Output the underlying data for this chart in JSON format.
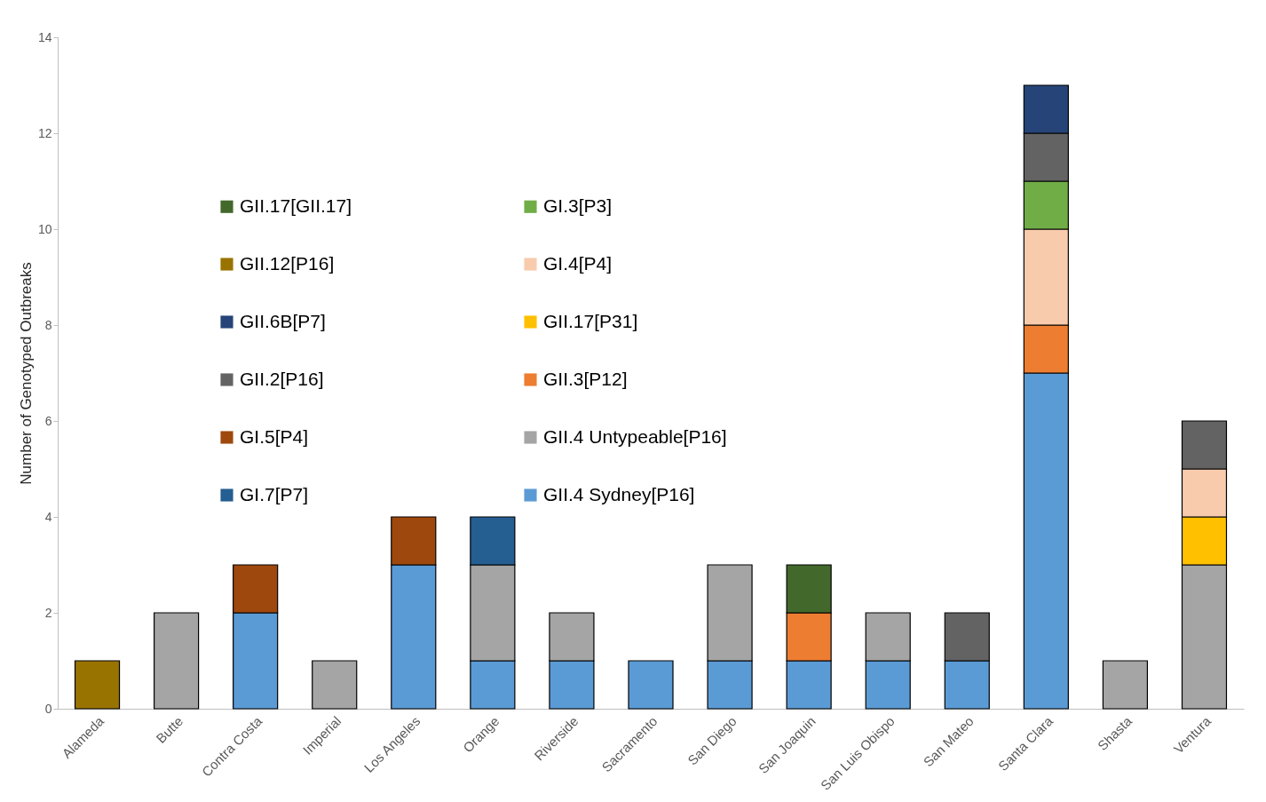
{
  "chart_data": {
    "type": "bar",
    "stacked": true,
    "ylabel": "Number of Genotyped Outbreaks",
    "categories": [
      "Alameda",
      "Butte",
      "Contra Costa",
      "Imperial",
      "Los Angeles",
      "Orange",
      "Riverside",
      "Sacramento",
      "San Diego",
      "San Joaquin",
      "San Luis Obispo",
      "San Mateo",
      "Santa Clara",
      "Shasta",
      "Ventura"
    ],
    "ylim": [
      0,
      14
    ],
    "yticks": [
      0,
      2,
      4,
      6,
      8,
      10,
      12,
      14
    ],
    "grid": false,
    "legend": "top left",
    "series": [
      {
        "name": "GII.4 Sydney[P16]",
        "color": "#5b9bd5",
        "values": [
          null,
          null,
          2,
          null,
          3,
          1,
          1,
          1,
          1,
          1,
          1,
          1,
          7,
          null,
          null
        ]
      },
      {
        "name": "GII.4 Untypeable[P16]",
        "color": "#a5a5a5",
        "values": [
          null,
          2,
          null,
          1,
          null,
          2,
          1,
          null,
          2,
          null,
          1,
          null,
          null,
          1,
          3
        ]
      },
      {
        "name": "GII.3[P12]",
        "color": "#ed7d31",
        "values": [
          null,
          null,
          null,
          null,
          null,
          null,
          null,
          null,
          null,
          1,
          null,
          null,
          1,
          null,
          null
        ]
      },
      {
        "name": "GII.17[P31]",
        "color": "#ffc000",
        "values": [
          null,
          null,
          null,
          null,
          null,
          null,
          null,
          null,
          null,
          null,
          null,
          null,
          null,
          null,
          1
        ]
      },
      {
        "name": "GI.4[P4]",
        "color": "#f8cbad",
        "values": [
          null,
          null,
          null,
          null,
          null,
          null,
          null,
          null,
          null,
          null,
          null,
          null,
          2,
          null,
          1
        ]
      },
      {
        "name": "GI.3[P3]",
        "color": "#70ad47",
        "values": [
          null,
          null,
          null,
          null,
          null,
          null,
          null,
          null,
          null,
          null,
          null,
          null,
          1,
          null,
          null
        ]
      },
      {
        "name": "GI.7[P7]",
        "color": "#255e91",
        "values": [
          null,
          null,
          null,
          null,
          null,
          1,
          null,
          null,
          null,
          null,
          null,
          null,
          null,
          null,
          null
        ]
      },
      {
        "name": "GI.5[P4]",
        "color": "#9e480e",
        "values": [
          null,
          null,
          1,
          null,
          1,
          null,
          null,
          null,
          null,
          null,
          null,
          null,
          null,
          null,
          null
        ]
      },
      {
        "name": "GII.2[P16]",
        "color": "#636363",
        "values": [
          null,
          null,
          null,
          null,
          null,
          null,
          null,
          null,
          null,
          null,
          null,
          1,
          1,
          null,
          1
        ]
      },
      {
        "name": "GII.6B[P7]",
        "color": "#264478",
        "values": [
          null,
          null,
          null,
          null,
          null,
          null,
          null,
          null,
          null,
          null,
          null,
          null,
          1,
          null,
          null
        ]
      },
      {
        "name": "GII.12[P16]",
        "color": "#997300",
        "values": [
          1,
          null,
          null,
          null,
          null,
          null,
          null,
          null,
          null,
          null,
          null,
          null,
          null,
          null,
          null
        ]
      },
      {
        "name": "GII.17[GII.17]",
        "color": "#43682b",
        "values": [
          null,
          null,
          null,
          null,
          null,
          null,
          null,
          null,
          null,
          1,
          null,
          null,
          null,
          null,
          null
        ]
      }
    ]
  }
}
